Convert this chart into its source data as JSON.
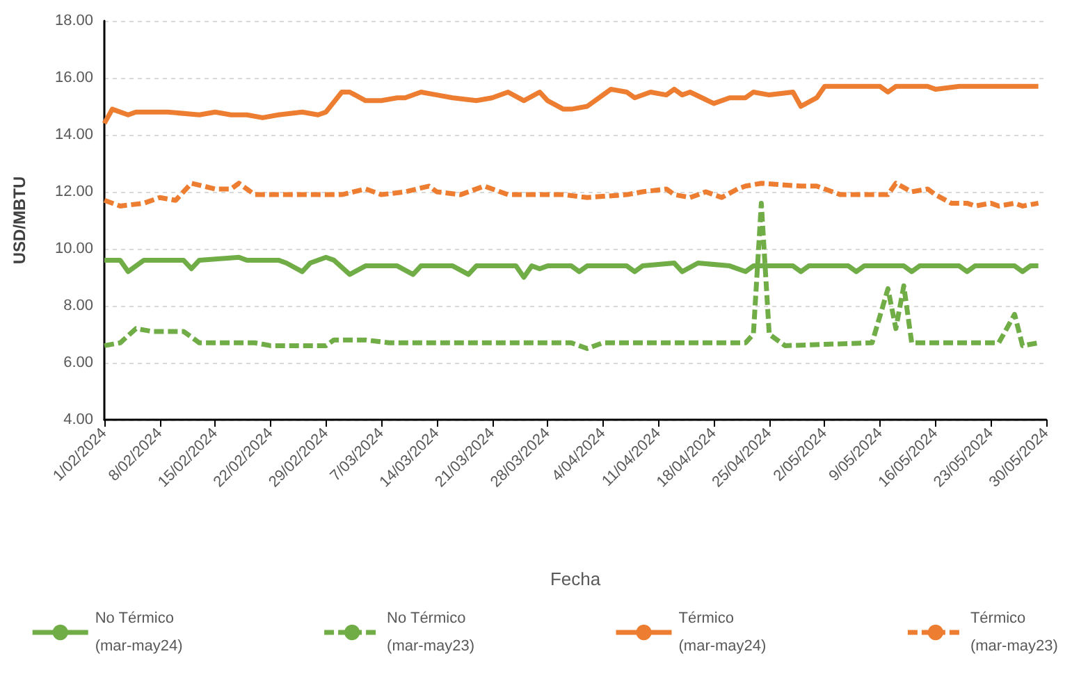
{
  "chart_data": {
    "type": "line",
    "xlabel": "Fecha",
    "ylabel": "USD/MBTU",
    "xlim": [
      "2024-02-01",
      "2024-05-30"
    ],
    "xticks": [
      {
        "value": "2024-02-01",
        "label": "1/02/2024"
      },
      {
        "value": "2024-02-08",
        "label": "8/02/2024"
      },
      {
        "value": "2024-02-15",
        "label": "15/02/2024"
      },
      {
        "value": "2024-02-22",
        "label": "22/02/2024"
      },
      {
        "value": "2024-02-29",
        "label": "29/02/2024"
      },
      {
        "value": "2024-03-07",
        "label": "7/03/2024"
      },
      {
        "value": "2024-03-14",
        "label": "14/03/2024"
      },
      {
        "value": "2024-03-21",
        "label": "21/03/2024"
      },
      {
        "value": "2024-03-28",
        "label": "28/03/2024"
      },
      {
        "value": "2024-04-04",
        "label": "4/04/2024"
      },
      {
        "value": "2024-04-11",
        "label": "11/04/2024"
      },
      {
        "value": "2024-04-18",
        "label": "18/04/2024"
      },
      {
        "value": "2024-04-25",
        "label": "25/04/2024"
      },
      {
        "value": "2024-05-02",
        "label": "2/05/2024"
      },
      {
        "value": "2024-05-09",
        "label": "9/05/2024"
      },
      {
        "value": "2024-05-16",
        "label": "16/05/2024"
      },
      {
        "value": "2024-05-23",
        "label": "23/05/2024"
      },
      {
        "value": "2024-05-30",
        "label": "30/05/2024"
      }
    ],
    "ylim": [
      4,
      18
    ],
    "yticks": [
      {
        "value": 4,
        "label": "4.00"
      },
      {
        "value": 6,
        "label": "6.00"
      },
      {
        "value": 8,
        "label": "8.00"
      },
      {
        "value": 10,
        "label": "10.00"
      },
      {
        "value": 12,
        "label": "12.00"
      },
      {
        "value": 14,
        "label": "14.00"
      },
      {
        "value": 16,
        "label": "16.00"
      },
      {
        "value": 18,
        "label": "18.00"
      }
    ],
    "grid": "y",
    "legend": "bottom",
    "marker": "none",
    "series": [
      {
        "name": "No Térmico\n(mar-may24)",
        "color": "#70ad47",
        "line_style": "solid",
        "x": [
          "2024-02-01",
          "2024-02-03",
          "2024-02-04",
          "2024-02-06",
          "2024-02-11",
          "2024-02-12",
          "2024-02-13",
          "2024-02-18",
          "2024-02-19",
          "2024-02-23",
          "2024-02-24",
          "2024-02-26",
          "2024-02-27",
          "2024-02-29",
          "2024-03-01",
          "2024-03-03",
          "2024-03-05",
          "2024-03-09",
          "2024-03-11",
          "2024-03-12",
          "2024-03-16",
          "2024-03-18",
          "2024-03-19",
          "2024-03-24",
          "2024-03-25",
          "2024-03-26",
          "2024-03-27",
          "2024-03-28",
          "2024-03-31",
          "2024-04-01",
          "2024-04-02",
          "2024-04-07",
          "2024-04-08",
          "2024-04-09",
          "2024-04-13",
          "2024-04-14",
          "2024-04-16",
          "2024-04-20",
          "2024-04-22",
          "2024-04-23",
          "2024-04-28",
          "2024-04-29",
          "2024-04-30",
          "2024-05-05",
          "2024-05-06",
          "2024-05-07",
          "2024-05-12",
          "2024-05-13",
          "2024-05-14",
          "2024-05-19",
          "2024-05-20",
          "2024-05-21",
          "2024-05-26",
          "2024-05-27",
          "2024-05-28",
          "2024-05-29"
        ],
        "values": [
          9.6,
          9.6,
          9.2,
          9.6,
          9.6,
          9.3,
          9.6,
          9.7,
          9.6,
          9.6,
          9.5,
          9.2,
          9.5,
          9.7,
          9.6,
          9.1,
          9.4,
          9.4,
          9.1,
          9.4,
          9.4,
          9.1,
          9.4,
          9.4,
          9.0,
          9.4,
          9.3,
          9.4,
          9.4,
          9.2,
          9.4,
          9.4,
          9.2,
          9.4,
          9.5,
          9.2,
          9.5,
          9.4,
          9.2,
          9.4,
          9.4,
          9.2,
          9.4,
          9.4,
          9.2,
          9.4,
          9.4,
          9.2,
          9.4,
          9.4,
          9.2,
          9.4,
          9.4,
          9.2,
          9.4,
          9.4
        ]
      },
      {
        "name": "No Térmico\n(mar-may23)",
        "color": "#70ad47",
        "line_style": "dashed",
        "x": [
          "2024-02-01",
          "2024-02-03",
          "2024-02-05",
          "2024-02-07",
          "2024-02-10",
          "2024-02-11",
          "2024-02-13",
          "2024-02-17",
          "2024-02-20",
          "2024-02-22",
          "2024-02-25",
          "2024-02-29",
          "2024-03-01",
          "2024-03-05",
          "2024-03-08",
          "2024-03-17",
          "2024-03-26",
          "2024-03-31",
          "2024-04-02",
          "2024-04-04",
          "2024-04-22",
          "2024-04-23",
          "2024-04-24",
          "2024-04-25",
          "2024-04-27",
          "2024-05-08",
          "2024-05-10",
          "2024-05-11",
          "2024-05-12",
          "2024-05-13",
          "2024-05-24",
          "2024-05-26",
          "2024-05-27",
          "2024-05-29"
        ],
        "values": [
          6.6,
          6.7,
          7.2,
          7.1,
          7.1,
          7.1,
          6.7,
          6.7,
          6.7,
          6.6,
          6.6,
          6.6,
          6.8,
          6.8,
          6.7,
          6.7,
          6.7,
          6.7,
          6.5,
          6.7,
          6.7,
          7.0,
          11.6,
          7.0,
          6.6,
          6.7,
          8.6,
          7.2,
          8.7,
          6.7,
          6.7,
          7.7,
          6.6,
          6.7
        ]
      },
      {
        "name": "Térmico\n(mar-may24)",
        "color": "#ed7d31",
        "line_style": "solid",
        "x": [
          "2024-02-01",
          "2024-02-02",
          "2024-02-04",
          "2024-02-05",
          "2024-02-09",
          "2024-02-13",
          "2024-02-15",
          "2024-02-17",
          "2024-02-19",
          "2024-02-21",
          "2024-02-23",
          "2024-02-26",
          "2024-02-28",
          "2024-02-29",
          "2024-03-02",
          "2024-03-03",
          "2024-03-05",
          "2024-03-07",
          "2024-03-09",
          "2024-03-10",
          "2024-03-12",
          "2024-03-14",
          "2024-03-16",
          "2024-03-19",
          "2024-03-21",
          "2024-03-23",
          "2024-03-25",
          "2024-03-27",
          "2024-03-28",
          "2024-03-30",
          "2024-03-31",
          "2024-04-02",
          "2024-04-04",
          "2024-04-05",
          "2024-04-07",
          "2024-04-08",
          "2024-04-10",
          "2024-04-12",
          "2024-04-13",
          "2024-04-14",
          "2024-04-15",
          "2024-04-18",
          "2024-04-20",
          "2024-04-22",
          "2024-04-23",
          "2024-04-25",
          "2024-04-28",
          "2024-04-29",
          "2024-05-01",
          "2024-05-02",
          "2024-05-06",
          "2024-05-09",
          "2024-05-10",
          "2024-05-11",
          "2024-05-15",
          "2024-05-16",
          "2024-05-19",
          "2024-05-23",
          "2024-05-25",
          "2024-05-27",
          "2024-05-29"
        ],
        "values": [
          14.4,
          14.9,
          14.7,
          14.8,
          14.8,
          14.7,
          14.8,
          14.7,
          14.7,
          14.6,
          14.7,
          14.8,
          14.7,
          14.8,
          15.5,
          15.5,
          15.2,
          15.2,
          15.3,
          15.3,
          15.5,
          15.4,
          15.3,
          15.2,
          15.3,
          15.5,
          15.2,
          15.5,
          15.2,
          14.9,
          14.9,
          15.0,
          15.4,
          15.6,
          15.5,
          15.3,
          15.5,
          15.4,
          15.6,
          15.4,
          15.5,
          15.1,
          15.3,
          15.3,
          15.5,
          15.4,
          15.5,
          15.0,
          15.3,
          15.7,
          15.7,
          15.7,
          15.5,
          15.7,
          15.7,
          15.6,
          15.7,
          15.7,
          15.7,
          15.7,
          15.7
        ]
      },
      {
        "name": "Térmico\n(mar-may23)",
        "color": "#ed7d31",
        "line_style": "dashed",
        "x": [
          "2024-02-01",
          "2024-02-03",
          "2024-02-06",
          "2024-02-08",
          "2024-02-10",
          "2024-02-12",
          "2024-02-15",
          "2024-02-17",
          "2024-02-18",
          "2024-02-20",
          "2024-02-26",
          "2024-03-02",
          "2024-03-05",
          "2024-03-07",
          "2024-03-10",
          "2024-03-13",
          "2024-03-14",
          "2024-03-17",
          "2024-03-20",
          "2024-03-22",
          "2024-03-23",
          "2024-03-30",
          "2024-04-02",
          "2024-04-07",
          "2024-04-09",
          "2024-04-12",
          "2024-04-13",
          "2024-04-15",
          "2024-04-17",
          "2024-04-19",
          "2024-04-21",
          "2024-04-22",
          "2024-04-24",
          "2024-04-29",
          "2024-05-01",
          "2024-05-04",
          "2024-05-10",
          "2024-05-11",
          "2024-05-13",
          "2024-05-15",
          "2024-05-16",
          "2024-05-18",
          "2024-05-20",
          "2024-05-21",
          "2024-05-23",
          "2024-05-24",
          "2024-05-26",
          "2024-05-27",
          "2024-05-29"
        ],
        "values": [
          11.7,
          11.5,
          11.6,
          11.8,
          11.7,
          12.3,
          12.1,
          12.1,
          12.3,
          11.9,
          11.9,
          11.9,
          12.1,
          11.9,
          12.0,
          12.2,
          12.0,
          11.9,
          12.2,
          12.0,
          11.9,
          11.9,
          11.8,
          11.9,
          12.0,
          12.1,
          11.9,
          11.8,
          12.0,
          11.8,
          12.1,
          12.2,
          12.3,
          12.2,
          12.2,
          11.9,
          11.9,
          12.3,
          12.0,
          12.1,
          11.9,
          11.6,
          11.6,
          11.5,
          11.6,
          11.5,
          11.6,
          11.5,
          11.6
        ]
      }
    ]
  }
}
